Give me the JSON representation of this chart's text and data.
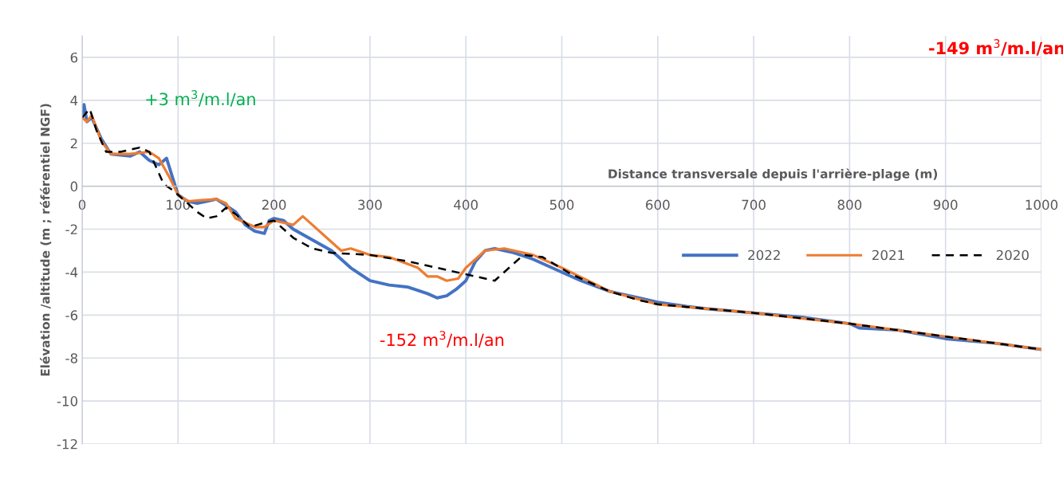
{
  "chart_data": {
    "type": "line",
    "xlabel": "Distance transversale depuis l'arrière-plage (m)",
    "ylabel": "Elévation /altitude (m ; référentiel NGF)",
    "xlim": [
      0,
      1000
    ],
    "xticks": [
      0,
      100,
      200,
      300,
      400,
      500,
      600,
      700,
      800,
      900,
      1000
    ],
    "ylim": [
      -12,
      7
    ],
    "yticks": [
      -12,
      -10,
      -8,
      -6,
      -4,
      -2,
      0,
      2,
      4,
      6
    ],
    "grid": true,
    "legend": "right",
    "marker": "none",
    "annotations": [
      "+3 m$^{3}$/m.l/an",
      "-152 m$^{3}$/m.l/an",
      "-149 m$^{3}$/m.l/an"
    ],
    "series": [
      {
        "name": "2022",
        "color": "#4472c4",
        "line_style": "solid",
        "x": [
          0,
          2,
          5,
          10,
          20,
          30,
          50,
          60,
          70,
          80,
          88,
          95,
          100,
          110,
          120,
          140,
          150,
          160,
          170,
          180,
          190,
          195,
          200,
          210,
          220,
          240,
          260,
          280,
          300,
          320,
          340,
          360,
          370,
          380,
          390,
          400,
          410,
          420,
          430,
          450,
          470,
          500,
          520,
          550,
          580,
          600,
          630,
          650,
          700,
          750,
          800,
          810,
          850,
          900,
          950,
          1000
        ],
        "values": [
          3.4,
          3.8,
          3.0,
          3.2,
          2.2,
          1.5,
          1.4,
          1.6,
          1.2,
          1.0,
          1.3,
          0.3,
          -0.4,
          -0.7,
          -0.8,
          -0.6,
          -0.9,
          -1.2,
          -1.8,
          -2.1,
          -2.2,
          -1.6,
          -1.5,
          -1.6,
          -2.0,
          -2.5,
          -3.0,
          -3.8,
          -4.4,
          -4.6,
          -4.7,
          -5.0,
          -5.2,
          -5.1,
          -4.8,
          -4.4,
          -3.5,
          -3.0,
          -2.9,
          -3.1,
          -3.4,
          -4.0,
          -4.4,
          -4.9,
          -5.2,
          -5.4,
          -5.6,
          -5.7,
          -5.9,
          -6.1,
          -6.4,
          -6.6,
          -6.7,
          -7.1,
          -7.3,
          -7.6
        ]
      },
      {
        "name": "2021",
        "color": "#ed7d31",
        "line_style": "solid",
        "x": [
          0,
          5,
          10,
          20,
          30,
          50,
          70,
          80,
          90,
          100,
          110,
          140,
          150,
          160,
          180,
          190,
          200,
          220,
          230,
          240,
          260,
          270,
          280,
          300,
          320,
          350,
          360,
          370,
          380,
          392,
          400,
          420,
          440,
          470,
          500,
          550,
          600,
          650,
          700,
          800,
          900,
          1000
        ],
        "values": [
          3.2,
          3.0,
          3.3,
          2.1,
          1.5,
          1.5,
          1.6,
          1.3,
          0.5,
          -0.4,
          -0.7,
          -0.6,
          -0.8,
          -1.5,
          -1.9,
          -1.9,
          -1.6,
          -1.8,
          -1.4,
          -1.8,
          -2.6,
          -3.0,
          -2.9,
          -3.2,
          -3.3,
          -3.8,
          -4.2,
          -4.2,
          -4.4,
          -4.3,
          -3.8,
          -3.0,
          -2.9,
          -3.2,
          -3.8,
          -4.9,
          -5.5,
          -5.7,
          -5.9,
          -6.4,
          -7.0,
          -7.6
        ]
      },
      {
        "name": "2020",
        "color": "#000000",
        "line_style": "dashed",
        "x": [
          0,
          8,
          15,
          25,
          40,
          60,
          70,
          80,
          85,
          95,
          110,
          120,
          130,
          140,
          150,
          160,
          175,
          190,
          200,
          220,
          240,
          260,
          300,
          340,
          380,
          400,
          420,
          430,
          445,
          460,
          480,
          510,
          550,
          580,
          600,
          650,
          700,
          800,
          900,
          1000
        ],
        "values": [
          3.2,
          3.6,
          2.6,
          1.6,
          1.6,
          1.8,
          1.6,
          0.6,
          0.1,
          -0.2,
          -0.8,
          -1.2,
          -1.5,
          -1.4,
          -1.0,
          -1.3,
          -1.9,
          -1.7,
          -1.6,
          -2.4,
          -2.9,
          -3.1,
          -3.2,
          -3.5,
          -3.9,
          -4.1,
          -4.3,
          -4.4,
          -3.8,
          -3.2,
          -3.3,
          -4.1,
          -4.9,
          -5.3,
          -5.5,
          -5.7,
          -5.9,
          -6.4,
          -7.0,
          -7.6
        ]
      }
    ]
  }
}
